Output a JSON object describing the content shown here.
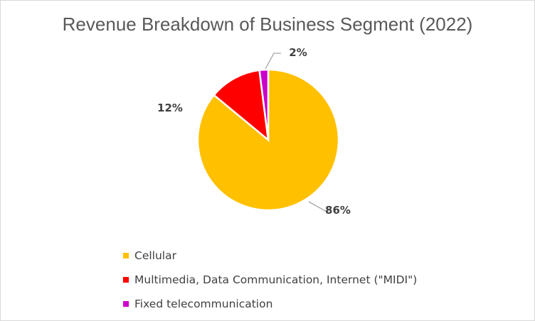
{
  "chart_data": {
    "type": "pie",
    "title": "Revenue Breakdown of Business Segment (2022)",
    "categories": [
      "Cellular",
      "Multimedia, Data Communication, Internet (\"MIDI\")",
      "Fixed telecommunication"
    ],
    "values": [
      86,
      12,
      2
    ],
    "data_labels": [
      "86%",
      "12%",
      "2%"
    ],
    "colors": [
      "#FFC000",
      "#FF0000",
      "#CC00CC"
    ],
    "legend_position": "bottom-left"
  }
}
